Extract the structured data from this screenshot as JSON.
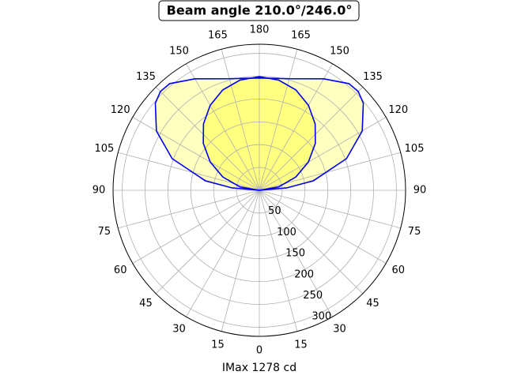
{
  "chart_data": {
    "type": "polar",
    "title": "Beam angle 210.0°/246.0°",
    "xlabel": "IMax 1278 cd",
    "rlim": [
      0,
      320
    ],
    "rticks": [
      50,
      100,
      150,
      200,
      250,
      300
    ],
    "thetaticks": [
      {
        "value": 0,
        "label": "0"
      },
      {
        "value": 15,
        "label": "15"
      },
      {
        "value": 30,
        "label": "30"
      },
      {
        "value": 45,
        "label": "45"
      },
      {
        "value": 60,
        "label": "60"
      },
      {
        "value": 75,
        "label": "75"
      },
      {
        "value": 90,
        "label": "90"
      },
      {
        "value": 105,
        "label": "105"
      },
      {
        "value": 120,
        "label": "120"
      },
      {
        "value": 135,
        "label": "135"
      },
      {
        "value": 150,
        "label": "150"
      },
      {
        "value": 165,
        "label": "165"
      },
      {
        "value": 180,
        "label": "180"
      },
      {
        "value": 195,
        "label": "165"
      },
      {
        "value": 210,
        "label": "150"
      },
      {
        "value": 225,
        "label": "135"
      },
      {
        "value": 240,
        "label": "120"
      },
      {
        "value": 255,
        "label": "105"
      },
      {
        "value": 270,
        "label": "90"
      },
      {
        "value": 285,
        "label": "75"
      },
      {
        "value": 300,
        "label": "60"
      },
      {
        "value": 315,
        "label": "45"
      },
      {
        "value": 330,
        "label": "30"
      },
      {
        "value": 345,
        "label": "15"
      }
    ],
    "grid": true,
    "series": [
      {
        "color": "#0000ee",
        "fill": "#ffffc0",
        "theta": [
          90,
          95,
          100,
          110,
          120,
          130,
          135,
          140,
          150,
          165,
          180,
          195,
          210,
          220,
          225,
          230,
          240,
          250,
          260,
          265,
          270
        ],
        "values": [
          0,
          60,
          120,
          203,
          260,
          297,
          306,
          305,
          282,
          253,
          246,
          253,
          282,
          305,
          306,
          297,
          260,
          203,
          120,
          60,
          0
        ]
      },
      {
        "color": "#0000ee",
        "fill": "#ffff80",
        "theta": [
          90,
          100,
          110,
          120,
          130,
          140,
          150,
          160,
          170,
          180,
          190,
          200,
          210,
          220,
          230,
          240,
          250,
          260,
          270
        ],
        "values": [
          0,
          43,
          85,
          124,
          160,
          190,
          215,
          234,
          245,
          249,
          245,
          234,
          215,
          190,
          160,
          124,
          85,
          43,
          0
        ]
      }
    ]
  }
}
